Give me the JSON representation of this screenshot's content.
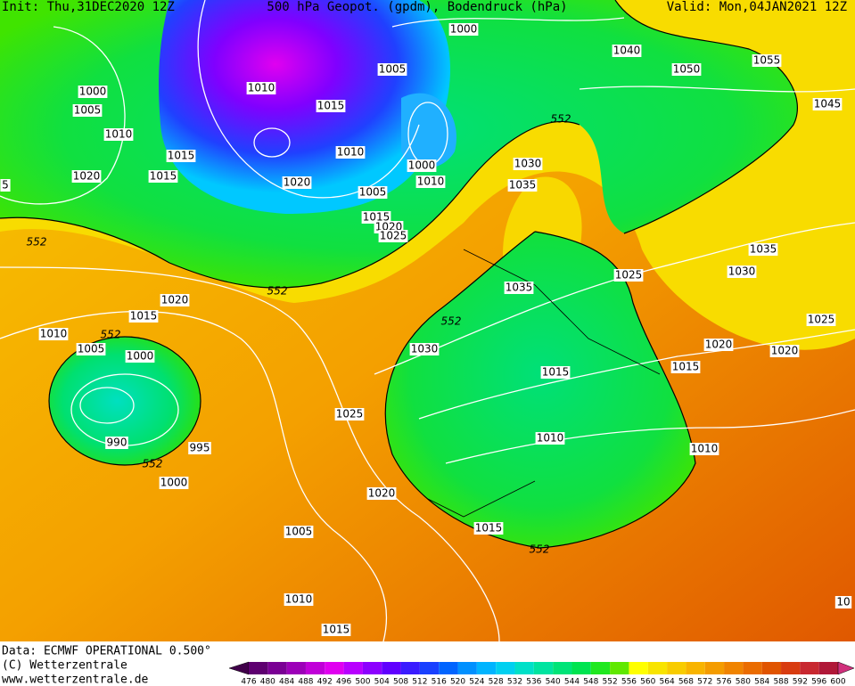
{
  "header": {
    "init": "Init: Thu,31DEC2020 12Z",
    "title": "500 hPa Geopot. (gpdm), Bodendruck (hPa)",
    "valid": "Valid: Mon,04JAN2021 12Z"
  },
  "footer": {
    "data": "Data: ECMWF OPERATIONAL 0.500°",
    "copyright": "(C) Wetterzentrale",
    "url": "www.wetterzentrale.de"
  },
  "colorbar": {
    "labels": [
      476,
      480,
      484,
      488,
      492,
      496,
      500,
      504,
      508,
      512,
      516,
      520,
      524,
      528,
      532,
      536,
      540,
      544,
      548,
      552,
      556,
      560,
      564,
      568,
      572,
      576,
      580,
      584,
      588,
      592,
      596,
      600
    ],
    "colors": [
      "#40004a",
      "#5e0070",
      "#7a0094",
      "#9c00b8",
      "#c000d8",
      "#e000f0",
      "#b800ff",
      "#8c00ff",
      "#6000ff",
      "#3a1cff",
      "#1840ff",
      "#0064ff",
      "#0090ff",
      "#00b4ff",
      "#00d0f0",
      "#00e0c8",
      "#00e4a0",
      "#00e478",
      "#00e450",
      "#20e820",
      "#60e800",
      "#ffff00",
      "#f8e400",
      "#f8cc00",
      "#f8b400",
      "#f49c00",
      "#f08400",
      "#ea6c00",
      "#e05400",
      "#d83c10",
      "#c82830",
      "#b01838",
      "#d0307c"
    ]
  },
  "contour_labels": [
    "1000",
    "1040",
    "1050",
    "1055",
    "1045",
    "1005",
    "1010",
    "1000",
    "1005",
    "1010",
    "1015",
    "1015",
    "1015",
    "1020",
    "5",
    "1010",
    "1000",
    "1010",
    "1020",
    "1005",
    "1030",
    "1035",
    "1015",
    "1020",
    "1025",
    "552",
    "552",
    "1035",
    "1030",
    "1025",
    "1035",
    "552",
    "1020",
    "1015",
    "1025",
    "552",
    "1010",
    "552",
    "1005",
    "1000",
    "1030",
    "1020",
    "1020",
    "1015",
    "1015",
    "1025",
    "1010",
    "990",
    "995",
    "1010",
    "552",
    "1000",
    "1020",
    "1005",
    "1015",
    "552",
    "1010",
    "10",
    "1015"
  ]
}
